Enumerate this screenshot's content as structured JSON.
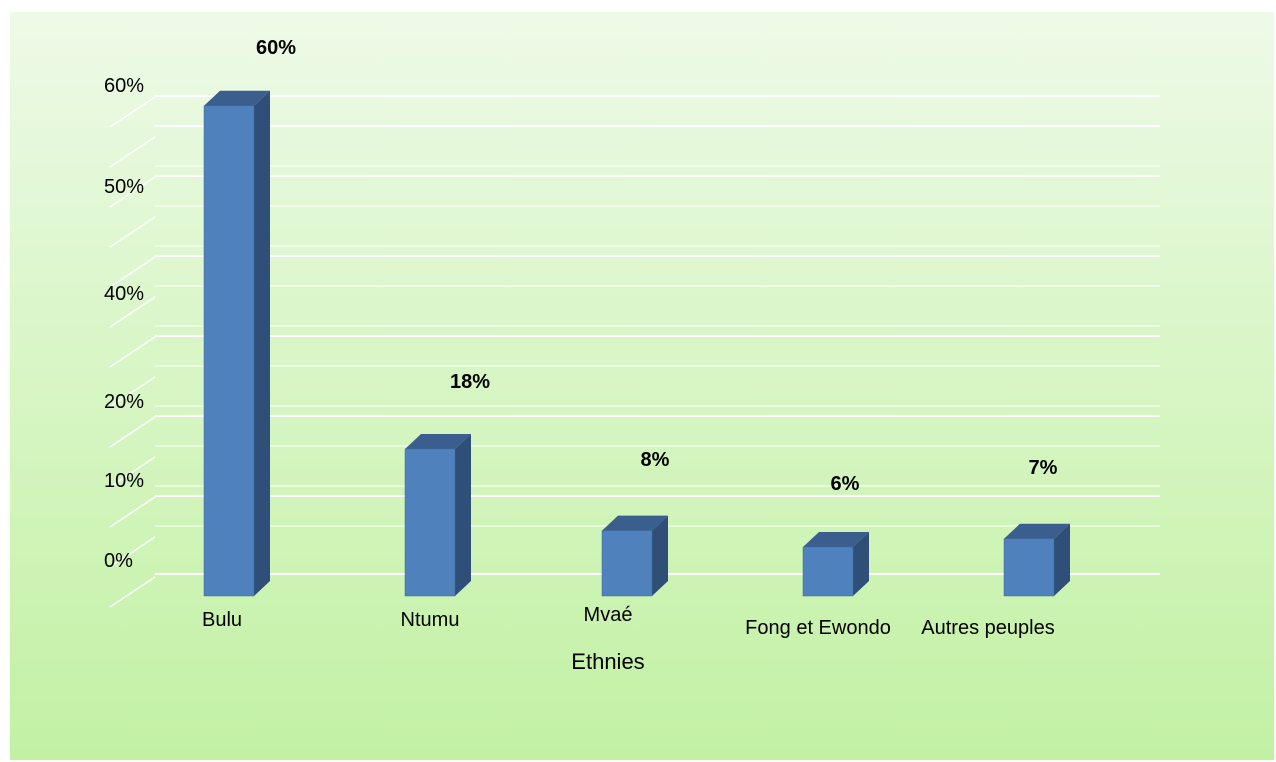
{
  "chart_data": {
    "type": "bar",
    "title": "",
    "xlabel": "Ethnies",
    "ylabel": "",
    "categories": [
      "Bulu",
      "Ntumu",
      "Mvaé",
      "Fong et Ewondo",
      "Autres peuples"
    ],
    "values": [
      60,
      18,
      8,
      6,
      7
    ],
    "data_labels": [
      "60%",
      "18%",
      "8%",
      "6%",
      "7%"
    ],
    "yticks": [
      "0%",
      "10%",
      "20%",
      "40%",
      "50%",
      "60%"
    ],
    "grid": true,
    "legend": "none",
    "style": "3d-column",
    "colors": {
      "bar_front": "#4f81bd",
      "bar_side": "#2f4f78",
      "bar_top": "#3a5f8f",
      "grid": "#ffffff",
      "background_top": "#eefae8",
      "background_bottom": "#c2f1a4"
    }
  }
}
